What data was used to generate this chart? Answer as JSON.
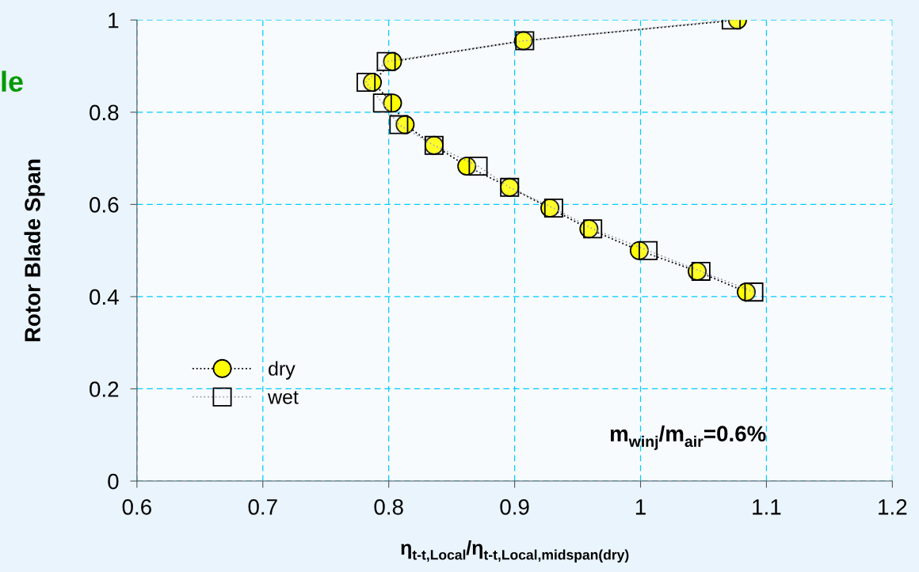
{
  "chart_data": {
    "type": "line",
    "xlabel": "η$_{t-t,Local}$/η$_{t-t,Local,midspan(dry)}$",
    "ylabel": "Rotor Blade Span",
    "annotations": [
      "le",
      "m$_{winj}$/m$_{air}$=0.6%"
    ],
    "series": [
      {
        "name": "dry",
        "color": "#ffff00",
        "marker": "circle",
        "line_style": "dotted",
        "x": [
          1.077,
          0.907,
          0.803,
          0.787,
          0.803,
          0.813,
          0.836,
          0.862,
          0.896,
          0.928,
          0.959,
          0.999,
          1.045,
          1.084
        ],
        "values": [
          1.0,
          0.955,
          0.91,
          0.865,
          0.82,
          0.773,
          0.728,
          0.683,
          0.637,
          0.592,
          0.547,
          0.5,
          0.455,
          0.41
        ]
      },
      {
        "name": "wet",
        "color": "#ffffff",
        "marker": "square",
        "line_style": "dotted",
        "x": [
          1.072,
          0.908,
          0.798,
          0.782,
          0.795,
          0.808,
          0.836,
          0.871,
          0.896,
          0.931,
          0.962,
          1.006,
          1.048,
          1.09
        ],
        "values": [
          1.0,
          0.955,
          0.91,
          0.865,
          0.82,
          0.773,
          0.728,
          0.683,
          0.637,
          0.592,
          0.547,
          0.5,
          0.455,
          0.41
        ]
      }
    ],
    "xlim": [
      0.6,
      1.2
    ],
    "xticks": [
      0.6,
      0.7,
      0.8,
      0.9,
      1,
      1.1,
      1.2
    ],
    "ylim": [
      0,
      1
    ],
    "yticks": [
      0,
      0.2,
      0.4,
      0.6,
      0.8,
      1
    ],
    "grid": true,
    "legend": "bottom left"
  }
}
